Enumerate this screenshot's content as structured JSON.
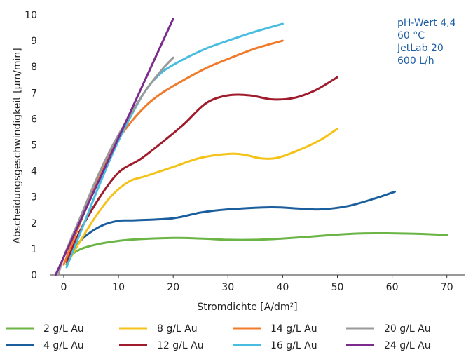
{
  "chart_data": {
    "type": "line",
    "title": "",
    "xlabel": "Stromdichte [A/dm²]",
    "ylabel": "Abscheidungsgeschwindigkeit [µm/min]",
    "xlim": [
      -2,
      75
    ],
    "ylim": [
      0,
      10
    ],
    "xticks": [
      0,
      10,
      20,
      30,
      40,
      50,
      60,
      70
    ],
    "yticks": [
      0,
      1,
      2,
      3,
      4,
      5,
      6,
      7,
      8,
      9,
      10
    ],
    "grid": false,
    "legend_position": "bottom",
    "annotation_lines": [
      "pH-Wert 4,4",
      "60 °C",
      "JetLab 20",
      "600 L/h"
    ],
    "series": [
      {
        "name": "2 g/L Au",
        "color": "#6ab545",
        "x": [
          0.5,
          1.5,
          3,
          5,
          8,
          12,
          20,
          25,
          30,
          35,
          40,
          45,
          50,
          55,
          60,
          65,
          70
        ],
        "y": [
          0.4,
          0.78,
          0.98,
          1.12,
          1.25,
          1.35,
          1.42,
          1.4,
          1.35,
          1.35,
          1.4,
          1.47,
          1.55,
          1.6,
          1.6,
          1.58,
          1.53
        ]
      },
      {
        "name": "4 g/L Au",
        "color": "#1b5e9e",
        "x": [
          0.8,
          2,
          4,
          7,
          10,
          13,
          20,
          25,
          30,
          38,
          43,
          47,
          52,
          57,
          60.5
        ],
        "y": [
          0.5,
          1.05,
          1.5,
          1.9,
          2.08,
          2.1,
          2.18,
          2.4,
          2.52,
          2.6,
          2.55,
          2.52,
          2.65,
          2.95,
          3.2
        ]
      },
      {
        "name": "8 g/L Au",
        "color": "#f5c218",
        "x": [
          0.8,
          3,
          6,
          9,
          12,
          15,
          20,
          25,
          30,
          33,
          36,
          39,
          43,
          47,
          50
        ],
        "y": [
          0.5,
          1.3,
          2.3,
          3.1,
          3.6,
          3.8,
          4.15,
          4.5,
          4.65,
          4.62,
          4.48,
          4.5,
          4.8,
          5.2,
          5.62
        ]
      },
      {
        "name": "12 g/L Au",
        "color": "#a01c2c",
        "x": [
          0.5,
          3,
          6,
          9,
          11,
          14,
          18,
          22,
          26,
          30,
          34,
          38,
          42,
          46,
          50
        ],
        "y": [
          0.5,
          1.7,
          2.8,
          3.7,
          4.1,
          4.45,
          5.1,
          5.8,
          6.6,
          6.9,
          6.9,
          6.75,
          6.8,
          7.1,
          7.6
        ]
      },
      {
        "name": "14 g/L Au",
        "color": "#f07b2a",
        "x": [
          0,
          3,
          6,
          9,
          12,
          15,
          18,
          22,
          26,
          30,
          35,
          40
        ],
        "y": [
          0.4,
          2.0,
          3.6,
          4.9,
          5.8,
          6.5,
          7.0,
          7.5,
          7.95,
          8.3,
          8.7,
          9.0
        ]
      },
      {
        "name": "16 g/L Au",
        "color": "#47bde0",
        "x": [
          0.5,
          3,
          6,
          9,
          12,
          15,
          18,
          22,
          26,
          30,
          35,
          40
        ],
        "y": [
          0.3,
          1.6,
          3.2,
          4.7,
          6.0,
          7.1,
          7.8,
          8.3,
          8.7,
          9.0,
          9.35,
          9.65
        ]
      },
      {
        "name": "20 g/L Au",
        "color": "#9a9a9a",
        "x": [
          -1,
          0,
          3,
          6,
          9,
          12,
          15,
          18,
          20
        ],
        "y": [
          0,
          0.7,
          2.2,
          3.7,
          5.0,
          6.1,
          7.1,
          7.9,
          8.35
        ]
      },
      {
        "name": "24 g/L Au",
        "color": "#7b2b8c",
        "x": [
          -1.5,
          20
        ],
        "y": [
          0,
          9.85
        ]
      }
    ]
  }
}
